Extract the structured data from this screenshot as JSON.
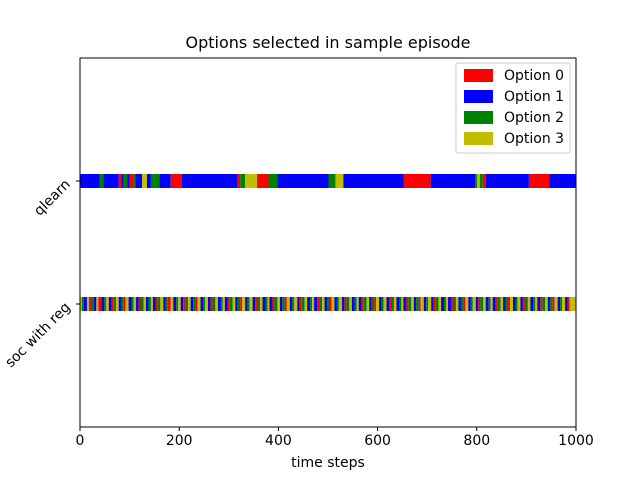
{
  "chart_data": {
    "type": "timeline",
    "title": "Options selected in sample episode",
    "xlabel": "time steps",
    "ylabel": "",
    "xlim": [
      0,
      1000
    ],
    "xticks": [
      0,
      200,
      400,
      600,
      800,
      1000
    ],
    "grid": false,
    "legend_placement": "top-right",
    "options": [
      {
        "name": "Option 0",
        "color": "#ff0000"
      },
      {
        "name": "Option 1",
        "color": "#0000ff"
      },
      {
        "name": "Option 2",
        "color": "#008000"
      },
      {
        "name": "Option 3",
        "color": "#bfbf00"
      }
    ],
    "rows": [
      {
        "label": "qlearn",
        "segments": [
          [
            0,
            40,
            1
          ],
          [
            40,
            47,
            2
          ],
          [
            47,
            78,
            1
          ],
          [
            78,
            83,
            0
          ],
          [
            83,
            88,
            1
          ],
          [
            88,
            95,
            2
          ],
          [
            95,
            100,
            1
          ],
          [
            100,
            107,
            0
          ],
          [
            107,
            112,
            2
          ],
          [
            112,
            125,
            1
          ],
          [
            125,
            135,
            3
          ],
          [
            135,
            143,
            1
          ],
          [
            143,
            150,
            2
          ],
          [
            150,
            160,
            2
          ],
          [
            160,
            183,
            1
          ],
          [
            183,
            205,
            0
          ],
          [
            205,
            318,
            1
          ],
          [
            318,
            323,
            0
          ],
          [
            323,
            333,
            2
          ],
          [
            333,
            357,
            3
          ],
          [
            357,
            380,
            0
          ],
          [
            380,
            398,
            2
          ],
          [
            398,
            501,
            1
          ],
          [
            501,
            515,
            2
          ],
          [
            515,
            531,
            3
          ],
          [
            531,
            653,
            1
          ],
          [
            653,
            707,
            0
          ],
          [
            707,
            797,
            1
          ],
          [
            797,
            801,
            2
          ],
          [
            801,
            806,
            3
          ],
          [
            806,
            812,
            2
          ],
          [
            812,
            818,
            0
          ],
          [
            818,
            905,
            1
          ],
          [
            905,
            946,
            0
          ],
          [
            946,
            1000,
            1
          ]
        ]
      },
      {
        "label": "soc with reg",
        "segments": [
          [
            0,
            4,
            3
          ],
          [
            4,
            8,
            2
          ],
          [
            8,
            14,
            1
          ],
          [
            14,
            18,
            3
          ],
          [
            18,
            22,
            0
          ],
          [
            22,
            28,
            2
          ],
          [
            28,
            33,
            1
          ],
          [
            33,
            37,
            3
          ],
          [
            37,
            43,
            0
          ],
          [
            43,
            49,
            1
          ],
          [
            49,
            53,
            2
          ],
          [
            53,
            58,
            3
          ],
          [
            58,
            64,
            1
          ],
          [
            64,
            68,
            0
          ],
          [
            68,
            73,
            2
          ],
          [
            73,
            78,
            3
          ],
          [
            78,
            84,
            1
          ],
          [
            84,
            88,
            2
          ],
          [
            88,
            92,
            0
          ],
          [
            92,
            98,
            3
          ],
          [
            98,
            104,
            1
          ],
          [
            104,
            108,
            2
          ],
          [
            108,
            113,
            3
          ],
          [
            113,
            118,
            1
          ],
          [
            118,
            122,
            0
          ],
          [
            122,
            128,
            2
          ],
          [
            128,
            133,
            3
          ],
          [
            133,
            138,
            1
          ],
          [
            138,
            143,
            2
          ],
          [
            143,
            147,
            3
          ],
          [
            147,
            153,
            1
          ],
          [
            153,
            157,
            0
          ],
          [
            157,
            162,
            2
          ],
          [
            162,
            168,
            3
          ],
          [
            168,
            173,
            1
          ],
          [
            173,
            177,
            2
          ],
          [
            177,
            183,
            0
          ],
          [
            183,
            188,
            3
          ],
          [
            188,
            194,
            1
          ],
          [
            194,
            198,
            2
          ],
          [
            198,
            203,
            3
          ],
          [
            203,
            208,
            1
          ],
          [
            208,
            212,
            0
          ],
          [
            212,
            218,
            2
          ],
          [
            218,
            223,
            3
          ],
          [
            223,
            228,
            1
          ],
          [
            228,
            233,
            2
          ],
          [
            233,
            237,
            0
          ],
          [
            237,
            243,
            3
          ],
          [
            243,
            248,
            1
          ],
          [
            248,
            252,
            2
          ],
          [
            252,
            258,
            3
          ],
          [
            258,
            263,
            1
          ],
          [
            263,
            267,
            0
          ],
          [
            267,
            273,
            2
          ],
          [
            273,
            278,
            3
          ],
          [
            278,
            284,
            1
          ],
          [
            284,
            288,
            2
          ],
          [
            288,
            292,
            3
          ],
          [
            292,
            298,
            1
          ],
          [
            298,
            302,
            0
          ],
          [
            302,
            308,
            2
          ],
          [
            308,
            313,
            3
          ],
          [
            313,
            318,
            1
          ],
          [
            318,
            323,
            2
          ],
          [
            323,
            327,
            0
          ],
          [
            327,
            333,
            3
          ],
          [
            333,
            338,
            1
          ],
          [
            338,
            342,
            2
          ],
          [
            342,
            348,
            3
          ],
          [
            348,
            353,
            1
          ],
          [
            353,
            357,
            0
          ],
          [
            357,
            363,
            2
          ],
          [
            363,
            368,
            3
          ],
          [
            368,
            374,
            1
          ],
          [
            374,
            378,
            2
          ],
          [
            378,
            382,
            3
          ],
          [
            382,
            388,
            1
          ],
          [
            388,
            392,
            0
          ],
          [
            392,
            398,
            2
          ],
          [
            398,
            403,
            3
          ],
          [
            403,
            408,
            1
          ],
          [
            408,
            413,
            2
          ],
          [
            413,
            417,
            0
          ],
          [
            417,
            423,
            3
          ],
          [
            423,
            428,
            1
          ],
          [
            428,
            432,
            2
          ],
          [
            432,
            438,
            3
          ],
          [
            438,
            443,
            1
          ],
          [
            443,
            447,
            0
          ],
          [
            447,
            453,
            2
          ],
          [
            453,
            458,
            3
          ],
          [
            458,
            464,
            1
          ],
          [
            464,
            468,
            2
          ],
          [
            468,
            472,
            3
          ],
          [
            472,
            478,
            1
          ],
          [
            478,
            482,
            0
          ],
          [
            482,
            488,
            2
          ],
          [
            488,
            493,
            3
          ],
          [
            493,
            498,
            1
          ],
          [
            498,
            503,
            2
          ],
          [
            503,
            507,
            0
          ],
          [
            507,
            513,
            3
          ],
          [
            513,
            518,
            1
          ],
          [
            518,
            522,
            2
          ],
          [
            522,
            528,
            3
          ],
          [
            528,
            533,
            1
          ],
          [
            533,
            537,
            0
          ],
          [
            537,
            543,
            2
          ],
          [
            543,
            548,
            3
          ],
          [
            548,
            554,
            1
          ],
          [
            554,
            558,
            2
          ],
          [
            558,
            562,
            3
          ],
          [
            562,
            568,
            1
          ],
          [
            568,
            572,
            0
          ],
          [
            572,
            578,
            2
          ],
          [
            578,
            583,
            3
          ],
          [
            583,
            588,
            1
          ],
          [
            588,
            593,
            2
          ],
          [
            593,
            597,
            0
          ],
          [
            597,
            603,
            3
          ],
          [
            603,
            608,
            1
          ],
          [
            608,
            612,
            2
          ],
          [
            612,
            618,
            3
          ],
          [
            618,
            623,
            1
          ],
          [
            623,
            627,
            0
          ],
          [
            627,
            633,
            2
          ],
          [
            633,
            638,
            3
          ],
          [
            638,
            644,
            1
          ],
          [
            644,
            648,
            2
          ],
          [
            648,
            652,
            3
          ],
          [
            652,
            658,
            1
          ],
          [
            658,
            662,
            0
          ],
          [
            662,
            668,
            2
          ],
          [
            668,
            673,
            3
          ],
          [
            673,
            678,
            1
          ],
          [
            678,
            683,
            2
          ],
          [
            683,
            687,
            0
          ],
          [
            687,
            693,
            3
          ],
          [
            693,
            698,
            1
          ],
          [
            698,
            702,
            2
          ],
          [
            702,
            708,
            3
          ],
          [
            708,
            713,
            1
          ],
          [
            713,
            717,
            0
          ],
          [
            717,
            723,
            2
          ],
          [
            723,
            728,
            3
          ],
          [
            728,
            734,
            1
          ],
          [
            734,
            738,
            2
          ],
          [
            738,
            742,
            3
          ],
          [
            742,
            748,
            1
          ],
          [
            748,
            752,
            0
          ],
          [
            752,
            758,
            2
          ],
          [
            758,
            763,
            3
          ],
          [
            763,
            768,
            1
          ],
          [
            768,
            773,
            2
          ],
          [
            773,
            777,
            0
          ],
          [
            777,
            783,
            3
          ],
          [
            783,
            788,
            1
          ],
          [
            788,
            792,
            2
          ],
          [
            792,
            798,
            3
          ],
          [
            798,
            803,
            1
          ],
          [
            803,
            807,
            0
          ],
          [
            807,
            813,
            2
          ],
          [
            813,
            818,
            3
          ],
          [
            818,
            824,
            1
          ],
          [
            824,
            828,
            2
          ],
          [
            828,
            832,
            3
          ],
          [
            832,
            838,
            1
          ],
          [
            838,
            842,
            0
          ],
          [
            842,
            848,
            2
          ],
          [
            848,
            853,
            3
          ],
          [
            853,
            858,
            1
          ],
          [
            858,
            863,
            2
          ],
          [
            863,
            867,
            0
          ],
          [
            867,
            873,
            3
          ],
          [
            873,
            878,
            1
          ],
          [
            878,
            882,
            2
          ],
          [
            882,
            888,
            3
          ],
          [
            888,
            893,
            1
          ],
          [
            893,
            897,
            0
          ],
          [
            897,
            903,
            2
          ],
          [
            903,
            908,
            3
          ],
          [
            908,
            914,
            1
          ],
          [
            914,
            918,
            2
          ],
          [
            918,
            922,
            3
          ],
          [
            922,
            928,
            1
          ],
          [
            928,
            932,
            0
          ],
          [
            932,
            938,
            2
          ],
          [
            938,
            943,
            3
          ],
          [
            943,
            948,
            1
          ],
          [
            948,
            953,
            2
          ],
          [
            953,
            957,
            0
          ],
          [
            957,
            963,
            3
          ],
          [
            963,
            968,
            1
          ],
          [
            968,
            972,
            2
          ],
          [
            972,
            978,
            3
          ],
          [
            978,
            983,
            1
          ],
          [
            983,
            987,
            0
          ],
          [
            987,
            1000,
            3
          ]
        ]
      }
    ]
  }
}
